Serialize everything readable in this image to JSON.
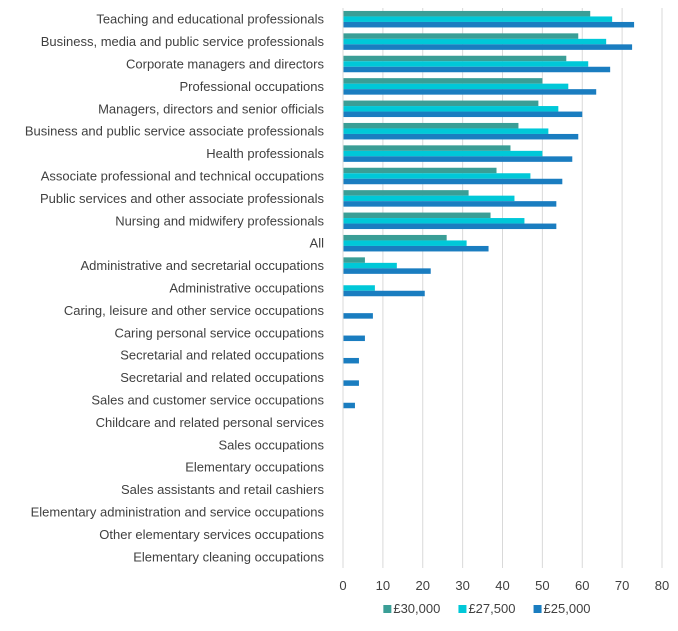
{
  "chart_data": {
    "type": "bar",
    "orientation": "horizontal",
    "categories": [
      "Teaching and educational professionals",
      "Business, media and public service professionals",
      "Corporate managers and directors",
      "Professional occupations",
      "Managers, directors and senior officials",
      "Business and public service associate professionals",
      "Health professionals",
      "Associate professional and technical occupations",
      "Public services and other associate professionals",
      "Nursing and midwifery professionals",
      "All",
      "Administrative and secretarial occupations",
      "Administrative occupations",
      "Caring, leisure and other service occupations",
      "Caring personal service occupations",
      "Secretarial and related occupations",
      "Secretarial and related occupations",
      "Sales and customer service occupations",
      "Childcare and related personal services",
      "Sales occupations",
      "Elementary occupations",
      "Sales assistants and retail cashiers",
      "Elementary administration and service occupations",
      "Other elementary services occupations",
      "Elementary cleaning occupations"
    ],
    "series": [
      {
        "name": "£30,000",
        "color": "#3a9e96",
        "values": [
          62,
          59,
          56,
          50,
          49,
          44,
          42,
          38.5,
          31.5,
          37,
          26,
          5.5,
          0,
          0,
          0,
          0,
          0,
          0,
          0,
          0,
          0,
          0,
          0,
          0,
          0
        ]
      },
      {
        "name": "£27,500",
        "color": "#00c8d8",
        "values": [
          67.5,
          66,
          61.5,
          56.5,
          54,
          51.5,
          50,
          47,
          43,
          45.5,
          31,
          13.5,
          8,
          0,
          0,
          0,
          0,
          0,
          0,
          0,
          0,
          0,
          0,
          0,
          0
        ]
      },
      {
        "name": "£25,000",
        "color": "#1a7dc0",
        "values": [
          73,
          72.5,
          67,
          63.5,
          60,
          59,
          57.5,
          55,
          53.5,
          53.5,
          36.5,
          22,
          20.5,
          7.5,
          5.5,
          4,
          4,
          3,
          0,
          0,
          0,
          0,
          0,
          0,
          0
        ]
      }
    ],
    "xticks": [
      "0",
      "10",
      "20",
      "30",
      "40",
      "50",
      "60",
      "70",
      "80"
    ],
    "xlim": [
      0,
      80
    ],
    "grid": "vertical",
    "legend_position": "bottom",
    "title": "",
    "xlabel": "",
    "ylabel": ""
  }
}
